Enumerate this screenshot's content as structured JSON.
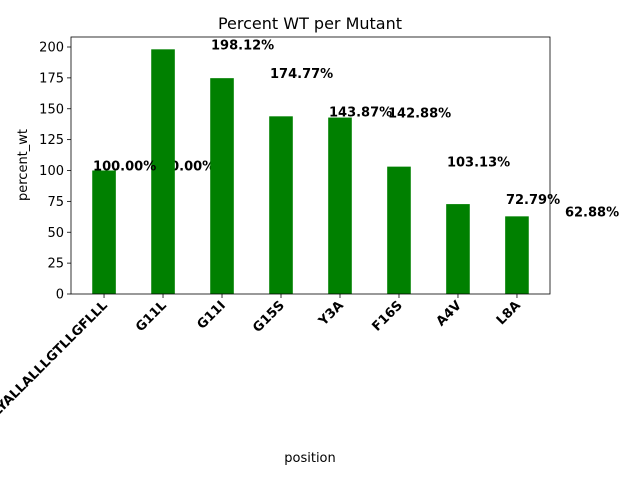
{
  "chart_data": {
    "type": "bar",
    "title": "Percent WT per Mutant",
    "x_label": "position",
    "y_label": "percent_wt",
    "categories": [
      "LLLYALLALLLGTLLGFLLL",
      "G11L",
      "G11I",
      "G15S",
      "Y3A",
      "F16S",
      "A4V",
      "L8A"
    ],
    "values": [
      100,
      198.12,
      174.77,
      143.87,
      142.88,
      103.13,
      72.79,
      62.88
    ],
    "value_labels": [
      "100.00%",
      "198.12%",
      "174.77%",
      "143.87%",
      "142.88%",
      "103.13%",
      "72.79%",
      "62.88%"
    ],
    "annotations": [
      {
        "text": "100.00%",
        "value": 100
      }
    ],
    "color": "#008000",
    "ylim": [
      0,
      208.1
    ],
    "yticks": [
      0,
      25,
      50,
      75,
      100,
      125,
      150,
      175,
      200
    ],
    "grid": false
  }
}
